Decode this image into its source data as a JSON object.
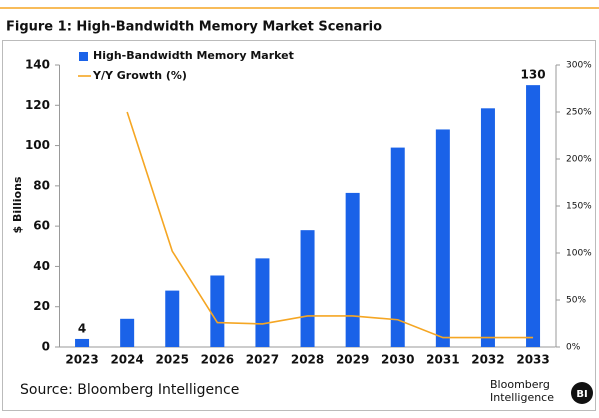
{
  "chart_data": {
    "type": "bar_line",
    "title": "Figure 1: High-Bandwidth Memory Market Scenario",
    "y_label": "$ Billions",
    "categories": [
      "2023",
      "2024",
      "2025",
      "2026",
      "2027",
      "2028",
      "2029",
      "2030",
      "2031",
      "2032",
      "2033"
    ],
    "series": [
      {
        "name": "High-Bandwidth Memory Market",
        "type": "bar",
        "color": "#1a62e8",
        "values": [
          4,
          14,
          28,
          35.5,
          44,
          58,
          76.5,
          99,
          108,
          118.5,
          130
        ],
        "value_labels": [
          "4",
          null,
          null,
          null,
          null,
          null,
          null,
          null,
          null,
          null,
          "130"
        ]
      },
      {
        "name": "Y/Y Growth (%)",
        "type": "line",
        "color": "#f5a623",
        "axis": "y2",
        "values": [
          null,
          250,
          102,
          26,
          24.5,
          33,
          33,
          29,
          10,
          10,
          10
        ]
      }
    ],
    "ylim": [
      0,
      140
    ],
    "yticks": [
      0,
      20,
      40,
      60,
      80,
      100,
      120,
      140
    ],
    "y2lim": [
      0,
      300
    ],
    "y2ticks": [
      {
        "value": 0,
        "label": "0%"
      },
      {
        "value": 50,
        "label": "50%"
      },
      {
        "value": 100,
        "label": "100%"
      },
      {
        "value": 150,
        "label": "150%"
      },
      {
        "value": 200,
        "label": "200%"
      },
      {
        "value": 250,
        "label": "250%"
      },
      {
        "value": 300,
        "label": "300%"
      }
    ],
    "source": "Source: Bloomberg Intelligence",
    "logo": {
      "name": "Bloomberg Intelligence",
      "badge": "BI"
    }
  }
}
